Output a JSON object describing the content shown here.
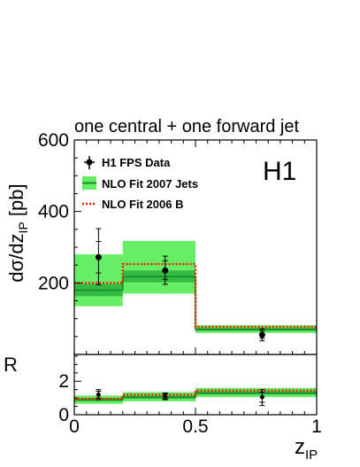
{
  "chart_data": [
    {
      "type": "bar",
      "panel": "main",
      "title": "one central + one forward jet",
      "xlabel": "z",
      "xlabel_sub": "IP",
      "ylabel": "dσ/dz",
      "ylabel_sub": "IP",
      "ylabel_unit": "[pb]",
      "logo": "H1",
      "xlim": [
        0,
        1
      ],
      "ylim": [
        0,
        600
      ],
      "yticks": [
        200,
        400,
        600
      ],
      "bins": [
        [
          0,
          0.2
        ],
        [
          0.2,
          0.5
        ],
        [
          0.5,
          1.0
        ]
      ],
      "legend": {
        "position": "top-left",
        "entries": [
          "H1 FPS Data",
          "NLO Fit 2007 Jets",
          "NLO Fit 2006 B"
        ]
      },
      "series": [
        {
          "name": "H1 FPS Data",
          "kind": "points",
          "x": [
            0.1,
            0.375,
            0.775
          ],
          "y": [
            272,
            235,
            55
          ],
          "err_stat": [
            [
              228,
              316
            ],
            [
              210,
              262
            ],
            [
              45,
              66
            ]
          ],
          "err_tot": [
            [
              195,
              352
            ],
            [
              196,
              275
            ],
            [
              38,
              72
            ]
          ]
        },
        {
          "name": "NLO Fit 2007 Jets",
          "kind": "band",
          "values": [
            180,
            218,
            70
          ],
          "band_outer": [
            [
              135,
              280
            ],
            [
              170,
              318
            ],
            [
              60,
              82
            ]
          ],
          "band_inner": [
            [
              163,
              197
            ],
            [
              202,
              235
            ],
            [
              66,
              74
            ]
          ]
        },
        {
          "name": "NLO Fit 2006 B",
          "kind": "dotted-line",
          "values": [
            200,
            253,
            77
          ]
        }
      ]
    },
    {
      "type": "bar",
      "panel": "ratio",
      "ylabel": "R",
      "xlim": [
        0,
        1
      ],
      "ylim": [
        0,
        3.6
      ],
      "yticks": [
        0,
        2
      ],
      "xticks": [
        0,
        0.5,
        1
      ],
      "bins": [
        [
          0,
          0.2
        ],
        [
          0.2,
          0.5
        ],
        [
          0.5,
          1.0
        ]
      ],
      "series": [
        {
          "name": "NLO Fit 2007 Jets",
          "kind": "band",
          "values": [
            0.9,
            1.05,
            1.3
          ],
          "band_outer": [
            [
              0.65,
              1.15
            ],
            [
              0.8,
              1.35
            ],
            [
              1.05,
              1.6
            ]
          ],
          "band_inner": [
            [
              0.8,
              1.0
            ],
            [
              0.95,
              1.15
            ],
            [
              1.2,
              1.4
            ]
          ]
        },
        {
          "name": "NLO Fit 2006 B",
          "kind": "dotted-line",
          "values": [
            0.95,
            1.2,
            1.45
          ]
        },
        {
          "name": "H1 FPS Data",
          "kind": "points",
          "x": [
            0.1,
            0.375,
            0.775
          ],
          "y": [
            1.2,
            1.1,
            1.05
          ],
          "err_stat": [
            [
              1.0,
              1.4
            ],
            [
              0.95,
              1.25
            ],
            [
              0.75,
              1.35
            ]
          ],
          "err_tot": [
            [
              0.9,
              1.5
            ],
            [
              0.9,
              1.3
            ],
            [
              0.55,
              1.5
            ]
          ]
        }
      ]
    }
  ],
  "colors": {
    "band_outer": "#66ee66",
    "band_inner": "#33bb44",
    "central_line": "#1d8a2a",
    "dotted": "#ee2200",
    "data": "#000000"
  }
}
